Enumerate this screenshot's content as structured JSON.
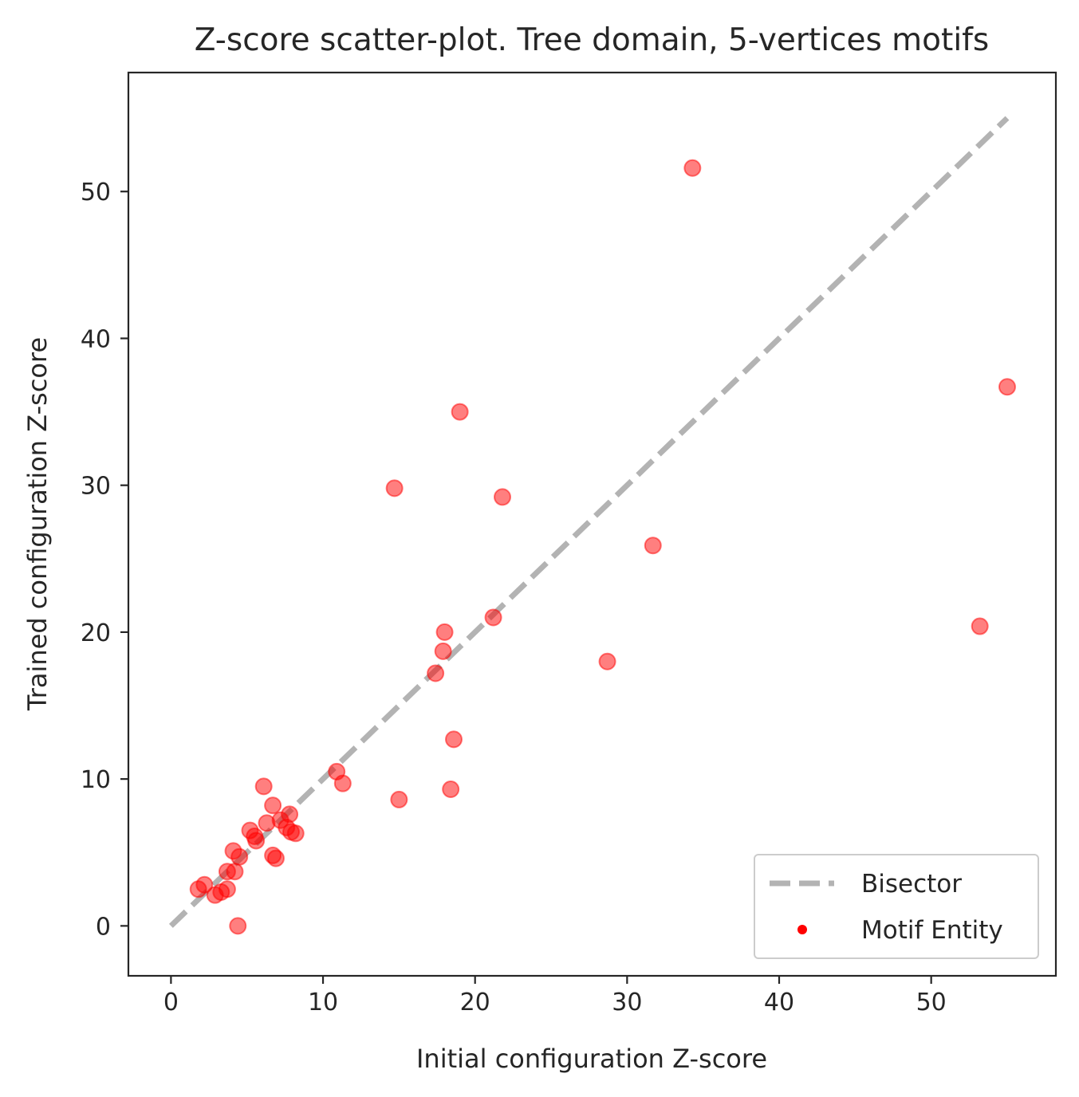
{
  "chart_data": {
    "type": "scatter",
    "title": "Z-score scatter-plot. Tree domain, 5-vertices motifs",
    "xlabel": "Initial configuration Z-score",
    "ylabel": "Trained configuration Z-score",
    "xlim": [
      -2.8,
      58.2
    ],
    "ylim": [
      -3.4,
      58.1
    ],
    "xticks": [
      0,
      10,
      20,
      30,
      40,
      50
    ],
    "yticks": [
      0,
      10,
      20,
      30,
      40,
      50
    ],
    "grid": false,
    "legend_position": "bottom-right",
    "series": [
      {
        "name": "Bisector",
        "kind": "line",
        "style": "dashed",
        "color": "#b3b3b3",
        "x": [
          0,
          55
        ],
        "y": [
          0,
          55
        ]
      },
      {
        "name": "Motif Entity",
        "kind": "scatter",
        "color": "#ff0000",
        "points": [
          [
            34.3,
            51.6
          ],
          [
            55.0,
            36.7
          ],
          [
            19.0,
            35.0
          ],
          [
            14.7,
            29.8
          ],
          [
            21.8,
            29.2
          ],
          [
            31.7,
            25.9
          ],
          [
            21.2,
            21.0
          ],
          [
            53.2,
            20.4
          ],
          [
            18.0,
            20.0
          ],
          [
            17.9,
            18.7
          ],
          [
            28.7,
            18.0
          ],
          [
            17.4,
            17.2
          ],
          [
            18.6,
            12.7
          ],
          [
            10.9,
            10.5
          ],
          [
            11.3,
            9.7
          ],
          [
            6.1,
            9.5
          ],
          [
            18.4,
            9.3
          ],
          [
            15.0,
            8.6
          ],
          [
            6.7,
            8.2
          ],
          [
            7.8,
            7.6
          ],
          [
            7.2,
            7.2
          ],
          [
            6.3,
            7.0
          ],
          [
            7.6,
            6.7
          ],
          [
            7.9,
            6.4
          ],
          [
            8.2,
            6.3
          ],
          [
            5.2,
            6.5
          ],
          [
            5.5,
            6.1
          ],
          [
            5.6,
            5.8
          ],
          [
            6.7,
            4.8
          ],
          [
            6.9,
            4.6
          ],
          [
            4.1,
            5.1
          ],
          [
            4.5,
            4.7
          ],
          [
            3.7,
            3.7
          ],
          [
            4.2,
            3.7
          ],
          [
            3.7,
            2.5
          ],
          [
            2.2,
            2.8
          ],
          [
            1.8,
            2.5
          ],
          [
            3.3,
            2.3
          ],
          [
            2.9,
            2.1
          ],
          [
            4.4,
            0.0
          ]
        ]
      }
    ]
  }
}
